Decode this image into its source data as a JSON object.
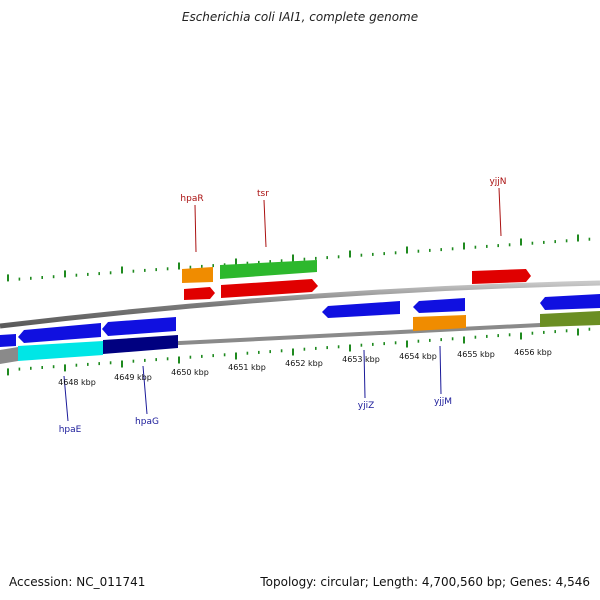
{
  "title": "Escherichia coli IAI1, complete genome",
  "footer": {
    "accession": "Accession: NC_011741",
    "summary": "Topology: circular; Length: 4,700,560 bp; Genes: 4,546"
  },
  "colors": {
    "backbone": "#8a8a8a",
    "tick": "#1f8a1f",
    "label_forward": "#aa1111",
    "label_reverse": "#1a1a99"
  },
  "scale_labels": [
    "4648 kbp",
    "4649 kbp",
    "4650 kbp",
    "4651 kbp",
    "4652 kbp",
    "4653 kbp",
    "4654 kbp",
    "4655 kbp",
    "4656 kbp"
  ],
  "genes": [
    {
      "name": "hpaR",
      "strand": "forward"
    },
    {
      "name": "tsr",
      "strand": "forward"
    },
    {
      "name": "yjjN",
      "strand": "forward"
    },
    {
      "name": "hpaE",
      "strand": "reverse"
    },
    {
      "name": "hpaG",
      "strand": "reverse"
    },
    {
      "name": "yjiZ",
      "strand": "reverse"
    },
    {
      "name": "yjjM",
      "strand": "reverse"
    }
  ]
}
